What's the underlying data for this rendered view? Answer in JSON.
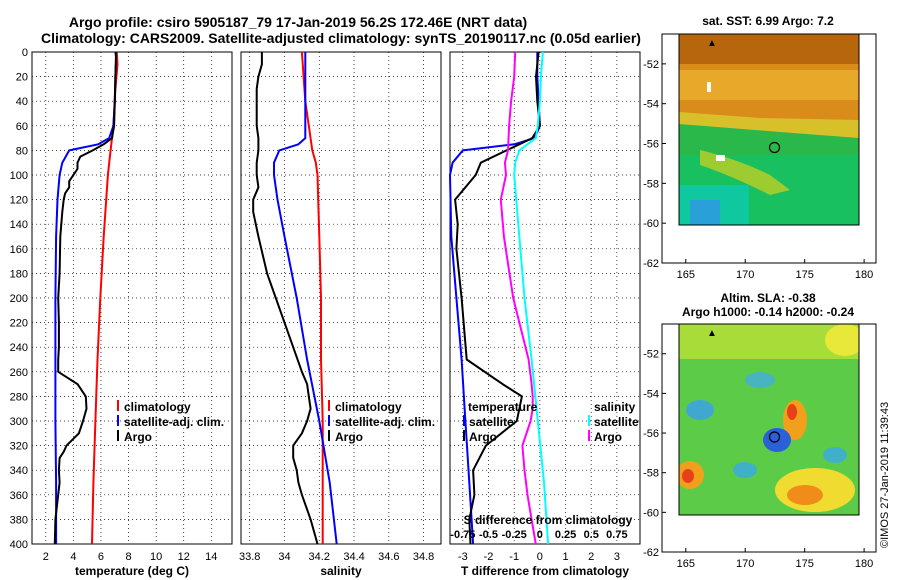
{
  "title_line1": "Argo profile: csiro 5905187_79 17-Jan-2019 56.2S 172.46E (NRT data)",
  "title_line2": "Climatology: CARS2009. Satellite-adjusted climatology: synTS_20190117.nc (0.05d earlier)",
  "colors": {
    "climatology": "#ff0000",
    "satellite": "#0000ff",
    "argo": "#000000",
    "sat_salt": "#00ffff",
    "argo_salt": "#ff00ff"
  },
  "depth_ticks": [
    "0",
    "20",
    "40",
    "60",
    "80",
    "100",
    "120",
    "140",
    "160",
    "180",
    "200",
    "220",
    "240",
    "260",
    "280",
    "300",
    "320",
    "340",
    "360",
    "380",
    "400"
  ],
  "chart_data": [
    {
      "type": "line",
      "name": "temperature-profile",
      "xlabel": "temperature (deg C)",
      "ylabel": "depth",
      "xlim": [
        1,
        15.5
      ],
      "ylim": [
        0,
        400
      ],
      "xticks": [
        "2",
        "4",
        "6",
        "8",
        "10",
        "12",
        "14"
      ],
      "legend": [
        "climatology",
        "satellite-adj. clim.",
        "Argo"
      ],
      "series": [
        {
          "name": "climatology",
          "depth": [
            0,
            10,
            30,
            50,
            60,
            70,
            75,
            80,
            90,
            100,
            150,
            200,
            250,
            300,
            350,
            400
          ],
          "values": [
            7.15,
            7.2,
            7.05,
            6.95,
            6.9,
            6.8,
            6.75,
            6.7,
            6.6,
            6.5,
            6.2,
            5.95,
            5.75,
            5.6,
            5.45,
            5.35
          ]
        },
        {
          "name": "satellite-adj. clim.",
          "depth": [
            0,
            5,
            20,
            40,
            60,
            70,
            75,
            80,
            90,
            100,
            120,
            150,
            200,
            250,
            300,
            350,
            400
          ],
          "values": [
            7.05,
            7.1,
            7.05,
            7.0,
            6.9,
            6.6,
            5.8,
            3.7,
            3.2,
            3.0,
            2.85,
            2.75,
            2.7,
            2.7,
            2.7,
            2.75,
            2.75
          ]
        },
        {
          "name": "Argo",
          "depth": [
            0,
            20,
            40,
            60,
            70,
            75,
            80,
            85,
            90,
            95,
            100,
            105,
            110,
            115,
            120,
            130,
            150,
            180,
            200,
            220,
            240,
            250,
            260,
            270,
            280,
            290,
            300,
            310,
            320,
            325,
            330,
            340,
            350,
            360,
            380,
            400
          ],
          "values": [
            7.1,
            7.05,
            7.0,
            6.95,
            6.8,
            6.2,
            5.4,
            4.5,
            4.3,
            4.3,
            4.0,
            3.7,
            3.7,
            3.4,
            3.3,
            3.2,
            3.05,
            3.0,
            2.9,
            2.95,
            2.95,
            2.9,
            2.9,
            4.3,
            4.9,
            4.95,
            4.7,
            4.4,
            3.5,
            3.3,
            3.0,
            2.95,
            3.0,
            2.9,
            2.7,
            2.65
          ]
        }
      ]
    },
    {
      "type": "line",
      "name": "salinity-profile",
      "xlabel": "salinity",
      "ylabel": "depth",
      "xlim": [
        33.75,
        34.9
      ],
      "ylim": [
        0,
        400
      ],
      "xticks": [
        "33.8",
        "34",
        "34.2",
        "34.4",
        "34.6",
        "34.8"
      ],
      "legend": [
        "climatology",
        "satellite-adj. clim.",
        "Argo"
      ],
      "series": [
        {
          "name": "climatology",
          "depth": [
            0,
            20,
            40,
            60,
            80,
            90,
            100,
            150,
            200,
            250,
            300,
            350,
            400
          ],
          "values": [
            34.1,
            34.11,
            34.12,
            34.14,
            34.16,
            34.18,
            34.19,
            34.2,
            34.21,
            34.21,
            34.22,
            34.22,
            34.22
          ]
        },
        {
          "name": "satellite-adj. clim.",
          "depth": [
            0,
            20,
            40,
            60,
            70,
            75,
            80,
            90,
            100,
            120,
            150,
            200,
            250,
            300,
            350,
            400
          ],
          "values": [
            34.12,
            34.12,
            34.12,
            34.12,
            34.12,
            34.08,
            33.97,
            33.94,
            33.94,
            33.96,
            34.0,
            34.07,
            34.13,
            34.2,
            34.26,
            34.3
          ]
        },
        {
          "name": "Argo",
          "depth": [
            0,
            10,
            20,
            30,
            40,
            50,
            60,
            70,
            80,
            90,
            100,
            110,
            120,
            130,
            150,
            180,
            200,
            220,
            240,
            260,
            270,
            280,
            290,
            300,
            310,
            320,
            330,
            340,
            350,
            360,
            380,
            400
          ],
          "values": [
            33.87,
            33.87,
            33.85,
            33.84,
            33.84,
            33.84,
            33.84,
            33.85,
            33.85,
            33.84,
            33.84,
            33.85,
            33.82,
            33.82,
            33.85,
            33.9,
            33.95,
            34.0,
            34.05,
            34.1,
            34.13,
            34.14,
            34.15,
            34.13,
            34.1,
            34.05,
            34.05,
            34.07,
            34.08,
            34.1,
            34.15,
            34.19
          ]
        }
      ]
    },
    {
      "type": "line",
      "name": "difference-profile",
      "xlabel": "T difference from climatology",
      "x2label": "S difference from climatology",
      "ylabel": "depth",
      "xlim": [
        -3.5,
        3.9
      ],
      "x2lim": [
        -0.875,
        0.975
      ],
      "ylim": [
        0,
        400
      ],
      "xticks": [
        "-3",
        "-2",
        "-1",
        "0",
        "1",
        "2",
        "3"
      ],
      "x2ticks": [
        "-0.75",
        "-0.5",
        "-0.25",
        "0",
        "0.25",
        "0.5",
        "0.75"
      ],
      "legend_temperature_title": "temperature",
      "legend_salinity_title": "salinity",
      "legend_temperature": [
        "satellite",
        "Argo"
      ],
      "legend_salinity": [
        "satellite",
        "Argo"
      ],
      "series": [
        {
          "name": "temperature satellite",
          "axis": "T",
          "depth": [
            0,
            20,
            40,
            60,
            70,
            75,
            80,
            90,
            100,
            150,
            200,
            250,
            300,
            350,
            400
          ],
          "values": [
            -0.1,
            -0.1,
            -0.05,
            0,
            -0.2,
            -1.0,
            -3.0,
            -3.4,
            -3.5,
            -3.45,
            -3.25,
            -3.05,
            -2.9,
            -2.75,
            -2.6
          ]
        },
        {
          "name": "temperature Argo",
          "axis": "T",
          "depth": [
            0,
            20,
            40,
            60,
            70,
            75,
            80,
            90,
            100,
            120,
            140,
            160,
            200,
            250,
            270,
            280,
            300,
            320,
            340,
            360,
            380,
            400
          ],
          "values": [
            -0.05,
            -0.15,
            -0.1,
            0,
            -0.3,
            -0.8,
            -1.3,
            -2.3,
            -2.5,
            -3.3,
            -3.2,
            -3.25,
            -3.05,
            -2.85,
            -1.45,
            -0.7,
            -0.9,
            -2.1,
            -2.6,
            -2.55,
            -2.75,
            -2.7
          ]
        },
        {
          "name": "salinity satellite",
          "axis": "S",
          "depth": [
            0,
            20,
            40,
            60,
            70,
            80,
            90,
            100,
            150,
            200,
            250,
            300,
            350,
            400
          ],
          "values": [
            0.03,
            0.01,
            0,
            -0.02,
            -0.04,
            -0.2,
            -0.24,
            -0.25,
            -0.2,
            -0.15,
            -0.08,
            -0.02,
            0.04,
            0.08
          ]
        },
        {
          "name": "salinity Argo",
          "axis": "S",
          "depth": [
            0,
            20,
            40,
            60,
            80,
            90,
            100,
            120,
            150,
            200,
            250,
            270,
            280,
            290,
            300,
            320,
            340,
            360,
            380,
            400
          ],
          "values": [
            -0.24,
            -0.25,
            -0.28,
            -0.3,
            -0.31,
            -0.34,
            -0.33,
            -0.38,
            -0.35,
            -0.26,
            -0.11,
            -0.08,
            -0.07,
            -0.07,
            -0.09,
            -0.17,
            -0.15,
            -0.12,
            -0.08,
            -0.04
          ]
        }
      ]
    },
    {
      "type": "heatmap",
      "name": "sst-map",
      "title": "sat. SST: 6.99 Argo: 7.2",
      "xlim": [
        163,
        181
      ],
      "ylim": [
        -62,
        -50.5
      ],
      "xticks": [
        "165",
        "170",
        "175",
        "180"
      ],
      "yticks": [
        "-52",
        "-54",
        "-56",
        "-58",
        "-60",
        "-62"
      ],
      "marker": {
        "lon": 172.46,
        "lat": -56.2
      }
    },
    {
      "type": "heatmap",
      "name": "sla-map",
      "title": "Altim. SLA: -0.38",
      "subtitle": "Argo h1000: -0.14 h2000: -0.24",
      "xlim": [
        163,
        181
      ],
      "ylim": [
        -62,
        -50.5
      ],
      "xticks": [
        "165",
        "170",
        "175",
        "180"
      ],
      "yticks": [
        "-52",
        "-54",
        "-56",
        "-58",
        "-60",
        "-62"
      ],
      "marker": {
        "lon": 172.46,
        "lat": -56.2
      }
    }
  ],
  "watermark": "©IMOS 27-Jan-2019 11:39:43"
}
